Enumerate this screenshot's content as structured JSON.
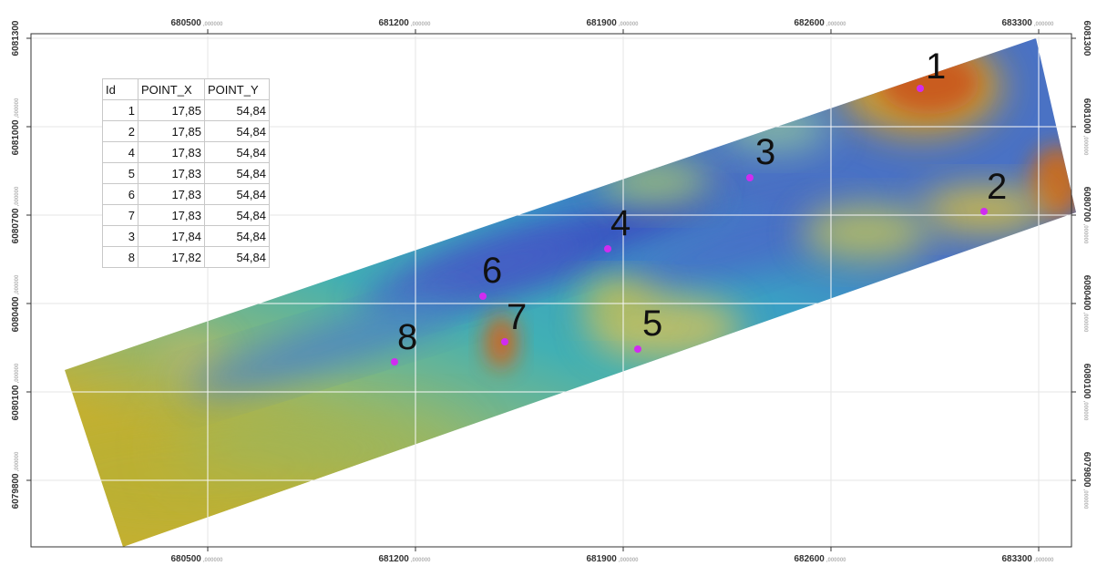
{
  "map": {
    "x_ticks": [
      {
        "value": "680500",
        "suffix": ",000000"
      },
      {
        "value": "681200",
        "suffix": ",000000"
      },
      {
        "value": "681900",
        "suffix": ",000000"
      },
      {
        "value": "682600",
        "suffix": ",000000"
      },
      {
        "value": "683300",
        "suffix": ",000000"
      }
    ],
    "y_ticks": [
      {
        "value": "6081300",
        "suffix": ",000000"
      },
      {
        "value": "6081000",
        "suffix": ",000000"
      },
      {
        "value": "6080700",
        "suffix": ",000000"
      },
      {
        "value": "6080400",
        "suffix": ",000000"
      },
      {
        "value": "6080100",
        "suffix": ",000000"
      },
      {
        "value": "6079800",
        "suffix": ",000000"
      }
    ],
    "point_color": "#d02cf0",
    "points": [
      {
        "id": "1"
      },
      {
        "id": "2"
      },
      {
        "id": "3"
      },
      {
        "id": "4"
      },
      {
        "id": "5"
      },
      {
        "id": "6"
      },
      {
        "id": "7"
      },
      {
        "id": "8"
      }
    ]
  },
  "table": {
    "headers": [
      "Id",
      "POINT_X",
      "POINT_Y"
    ],
    "rows": [
      [
        "1",
        "17,85",
        "54,84"
      ],
      [
        "2",
        "17,85",
        "54,84"
      ],
      [
        "4",
        "17,83",
        "54,84"
      ],
      [
        "5",
        "17,83",
        "54,84"
      ],
      [
        "6",
        "17,83",
        "54,84"
      ],
      [
        "7",
        "17,83",
        "54,84"
      ],
      [
        "3",
        "17,84",
        "54,84"
      ],
      [
        "8",
        "17,82",
        "54,84"
      ]
    ]
  }
}
